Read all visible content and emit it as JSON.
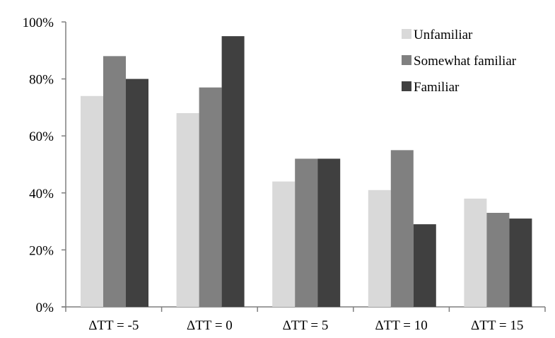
{
  "chart_data": {
    "type": "bar",
    "title": "",
    "xlabel": "",
    "ylabel": "",
    "categories": [
      "ΔTT = -5",
      "ΔTT = 0",
      "ΔTT = 5",
      "ΔTT = 10",
      "ΔTT = 15"
    ],
    "series": [
      {
        "name": "Unfamiliar",
        "color": "#d9d9d9",
        "values": [
          74,
          68,
          44,
          41,
          38
        ]
      },
      {
        "name": "Somewhat familiar",
        "color": "#808080",
        "values": [
          88,
          77,
          52,
          55,
          33
        ]
      },
      {
        "name": "Familiar",
        "color": "#404040",
        "values": [
          80,
          95,
          52,
          29,
          31
        ]
      }
    ],
    "ylim": [
      0,
      100
    ],
    "y_ticks": [
      "0%",
      "20%",
      "40%",
      "60%",
      "80%",
      "100%"
    ],
    "grid": false,
    "legend_position": "top-right"
  }
}
